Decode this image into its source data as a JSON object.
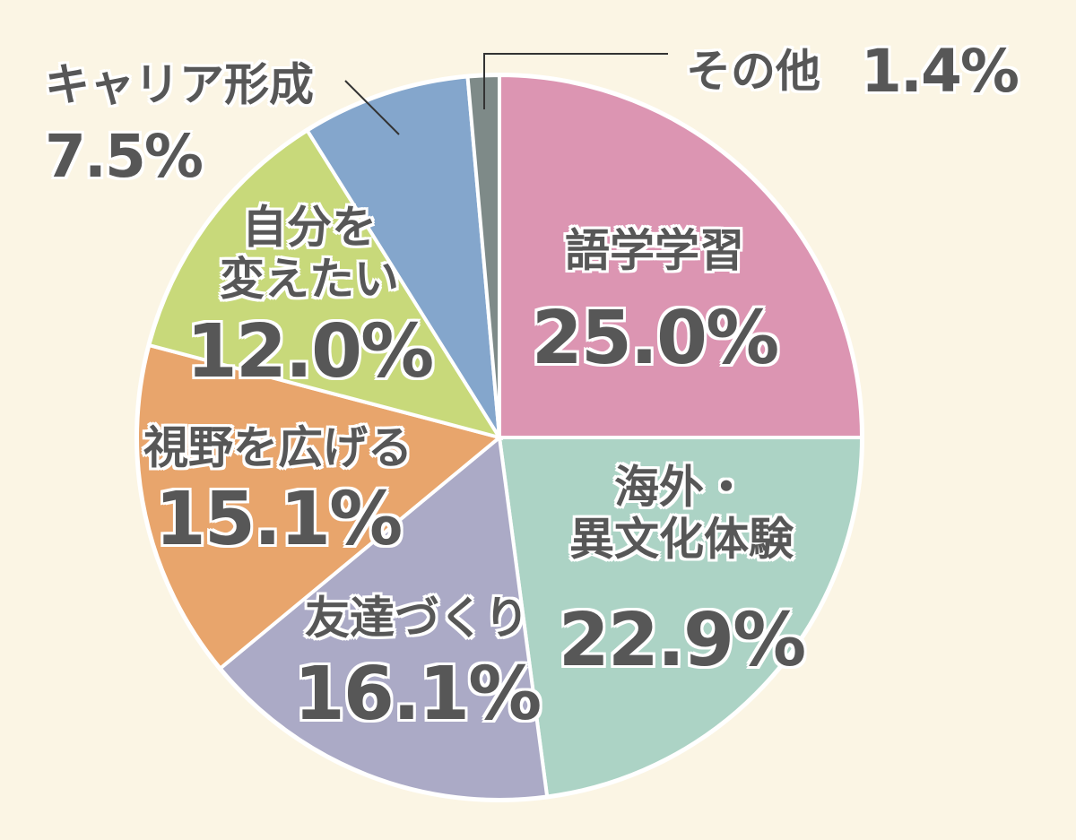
{
  "chart_data": {
    "type": "pie",
    "categories": [
      "語学学習",
      "海外・\n異文化体験",
      "友達づくり",
      "視野を広げる",
      "自分を\n変えたい",
      "キャリア形成",
      "その他"
    ],
    "values": [
      25.0,
      22.9,
      16.1,
      15.1,
      12.0,
      7.5,
      1.4
    ],
    "value_labels": [
      "25.0%",
      "22.9%",
      "16.1%",
      "15.1%",
      "12.0%",
      "7.5%",
      "1.4%"
    ],
    "colors": [
      "#dc95b2",
      "#acd3c5",
      "#abaac6",
      "#e8a56c",
      "#c8d97a",
      "#84a6cc",
      "#7e8a88"
    ]
  }
}
